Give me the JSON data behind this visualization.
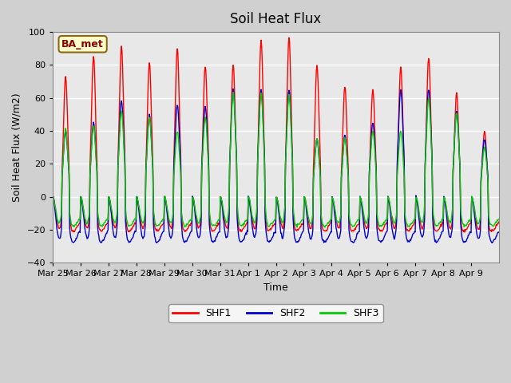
{
  "title": "Soil Heat Flux",
  "ylabel": "Soil Heat Flux (W/m2)",
  "xlabel": "Time",
  "ylim": [
    -40,
    100
  ],
  "yticks": [
    -40,
    -20,
    0,
    20,
    40,
    60,
    80,
    100
  ],
  "shf1_color": "#ff0000",
  "shf2_color": "#0000cc",
  "shf3_color": "#00cc00",
  "legend_label1": "SHF1",
  "legend_label2": "SHF2",
  "legend_label3": "SHF3",
  "site_label": "BA_met",
  "x_tick_labels": [
    "Mar 25",
    "Mar 26",
    "Mar 27",
    "Mar 28",
    "Mar 29",
    "Mar 30",
    "Mar 31",
    "Apr 1",
    "Apr 2",
    "Apr 3",
    "Apr 4",
    "Apr 5",
    "Apr 6",
    "Apr 7",
    "Apr 8",
    "Apr 9"
  ],
  "n_days": 16,
  "points_per_day": 48,
  "shf1_peaks": [
    73,
    85,
    91,
    81,
    90,
    80,
    80,
    95,
    97,
    80,
    67,
    65,
    79,
    85,
    63,
    40
  ],
  "shf2_peaks": [
    40,
    45,
    58,
    50,
    56,
    55,
    65,
    65,
    65,
    35,
    37,
    45,
    65,
    65,
    52,
    35
  ],
  "shf3_peaks": [
    41,
    43,
    52,
    48,
    40,
    48,
    63,
    63,
    62,
    35,
    36,
    40,
    40,
    60,
    51,
    30
  ],
  "shf1_min": -21,
  "shf2_min": -28,
  "shf3_min": -18,
  "line_width": 1.0
}
